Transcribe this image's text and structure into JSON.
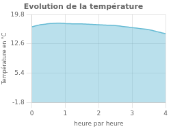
{
  "chart_data": {
    "type": "area",
    "title": "Evolution de la température",
    "x_label": "heure par heure",
    "y_label": "Température en °C",
    "color": "#66bbd4",
    "x": [
      0.0,
      0.05,
      0.1,
      0.15,
      0.2,
      0.25,
      0.3,
      0.35,
      0.4,
      0.45,
      0.5,
      0.55,
      0.6,
      0.65,
      0.7,
      0.75,
      0.8,
      0.85,
      0.9,
      0.95,
      1.0,
      1.05,
      1.1,
      1.15,
      1.2,
      1.25,
      1.3,
      1.35,
      1.4,
      1.45,
      1.5,
      1.55,
      1.6,
      1.65,
      1.7,
      1.75,
      1.8,
      1.85,
      1.9,
      1.95,
      2.0,
      2.05,
      2.1,
      2.15,
      2.2,
      2.25,
      2.3,
      2.35,
      2.4,
      2.45,
      2.5,
      2.55,
      2.6,
      2.65,
      2.7,
      2.75,
      2.8,
      2.85,
      2.9,
      2.95,
      3.0,
      3.05,
      3.1,
      3.15,
      3.2,
      3.25,
      3.3,
      3.35,
      3.4,
      3.45,
      3.5,
      3.55,
      3.6,
      3.65,
      3.7,
      3.75,
      3.8,
      3.85,
      3.9,
      3.95,
      4.0
    ],
    "values": [
      16.8,
      16.9,
      17.0,
      17.1,
      17.2,
      17.3,
      17.35,
      17.4,
      17.45,
      17.5,
      17.55,
      17.6,
      17.62,
      17.64,
      17.66,
      17.68,
      17.7,
      17.68,
      17.66,
      17.63,
      17.6,
      17.58,
      17.56,
      17.54,
      17.52,
      17.5,
      17.5,
      17.5,
      17.5,
      17.5,
      17.5,
      17.48,
      17.46,
      17.44,
      17.42,
      17.4,
      17.38,
      17.36,
      17.34,
      17.32,
      17.3,
      17.28,
      17.26,
      17.24,
      17.22,
      17.2,
      17.18,
      17.16,
      17.14,
      17.12,
      17.1,
      17.05,
      17.0,
      16.95,
      16.9,
      16.85,
      16.8,
      16.75,
      16.7,
      16.65,
      16.6,
      16.55,
      16.5,
      16.45,
      16.4,
      16.35,
      16.3,
      16.25,
      16.2,
      16.15,
      16.1,
      16.0,
      15.9,
      15.8,
      15.7,
      15.6,
      15.5,
      15.4,
      15.3,
      15.2,
      15.1
    ],
    "xlim": [
      0,
      4
    ],
    "xticks": [
      0,
      1,
      2,
      3,
      4
    ],
    "ylim": [
      -1.8,
      19.8
    ],
    "yticks": [
      -1.8,
      5.4,
      12.6,
      19.8
    ],
    "grid": true
  }
}
